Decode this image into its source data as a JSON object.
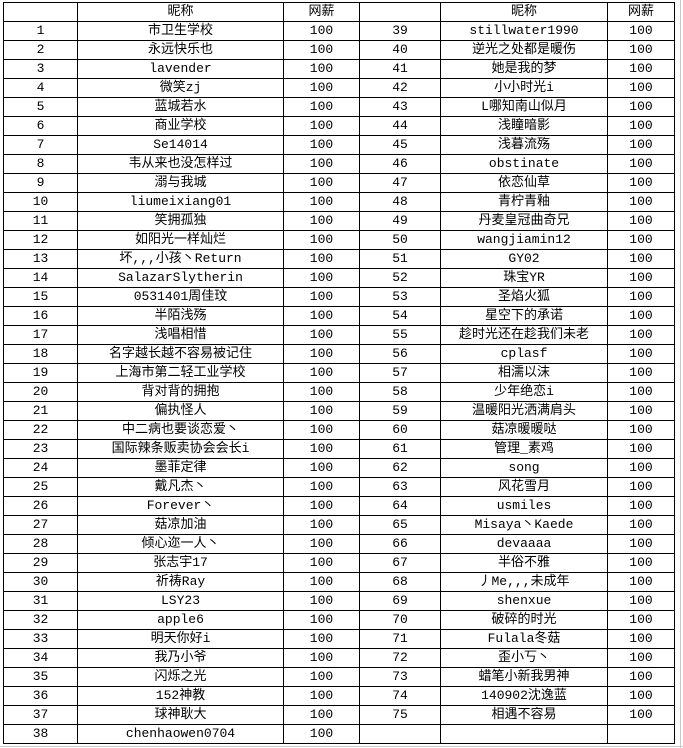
{
  "table": {
    "headers": {
      "index": "",
      "nickname": "昵称",
      "net_pay": "网薪"
    },
    "left_rows": [
      {
        "index": 1,
        "nickname": "市卫生学校",
        "net_pay": 100
      },
      {
        "index": 2,
        "nickname": "永远快乐也",
        "net_pay": 100
      },
      {
        "index": 3,
        "nickname": "lavender",
        "net_pay": 100
      },
      {
        "index": 4,
        "nickname": "微笑zj",
        "net_pay": 100
      },
      {
        "index": 5,
        "nickname": "蓝城若水",
        "net_pay": 100
      },
      {
        "index": 6,
        "nickname": "商业学校",
        "net_pay": 100
      },
      {
        "index": 7,
        "nickname": "Se14014",
        "net_pay": 100
      },
      {
        "index": 8,
        "nickname": "韦从来也没怎样过",
        "net_pay": 100
      },
      {
        "index": 9,
        "nickname": "溺与我城",
        "net_pay": 100
      },
      {
        "index": 10,
        "nickname": "liumeixiang01",
        "net_pay": 100
      },
      {
        "index": 11,
        "nickname": "笑拥孤独",
        "net_pay": 100
      },
      {
        "index": 12,
        "nickname": "如阳光一样灿烂",
        "net_pay": 100
      },
      {
        "index": 13,
        "nickname": "坏,,,小孩丶Return",
        "net_pay": 100
      },
      {
        "index": 14,
        "nickname": "SalazarSlytherin",
        "net_pay": 100
      },
      {
        "index": 15,
        "nickname": "0531401周佳玟",
        "net_pay": 100
      },
      {
        "index": 16,
        "nickname": "半陌浅殇",
        "net_pay": 100
      },
      {
        "index": 17,
        "nickname": "浅唱相惜",
        "net_pay": 100
      },
      {
        "index": 18,
        "nickname": "名字越长越不容易被记住",
        "net_pay": 100
      },
      {
        "index": 19,
        "nickname": "上海市第二轻工业学校",
        "net_pay": 100
      },
      {
        "index": 20,
        "nickname": "背对背的拥抱",
        "net_pay": 100
      },
      {
        "index": 21,
        "nickname": "偏执怪人",
        "net_pay": 100
      },
      {
        "index": 22,
        "nickname": "中二病也要谈恋爱丶",
        "net_pay": 100
      },
      {
        "index": 23,
        "nickname": "国际辣条贩卖协会会长i",
        "net_pay": 100
      },
      {
        "index": 24,
        "nickname": "墨菲定律",
        "net_pay": 100
      },
      {
        "index": 25,
        "nickname": "戴凡杰丶",
        "net_pay": 100
      },
      {
        "index": 26,
        "nickname": "Forever丶",
        "net_pay": 100
      },
      {
        "index": 27,
        "nickname": "菇凉加油",
        "net_pay": 100
      },
      {
        "index": 28,
        "nickname": "倾心迩一人丶",
        "net_pay": 100
      },
      {
        "index": 29,
        "nickname": "张志宇17",
        "net_pay": 100
      },
      {
        "index": 30,
        "nickname": "祈祷Ray",
        "net_pay": 100
      },
      {
        "index": 31,
        "nickname": "LSY23",
        "net_pay": 100
      },
      {
        "index": 32,
        "nickname": "apple6",
        "net_pay": 100
      },
      {
        "index": 33,
        "nickname": "明天你好i",
        "net_pay": 100
      },
      {
        "index": 34,
        "nickname": "我乃小爷",
        "net_pay": 100
      },
      {
        "index": 35,
        "nickname": "闪烁之光",
        "net_pay": 100
      },
      {
        "index": 36,
        "nickname": "152神教",
        "net_pay": 100
      },
      {
        "index": 37,
        "nickname": "球神耿大",
        "net_pay": 100
      },
      {
        "index": 38,
        "nickname": "chenhaowen0704",
        "net_pay": 100
      }
    ],
    "right_rows": [
      {
        "index": 39,
        "nickname": "stillwater1990",
        "net_pay": 100
      },
      {
        "index": 40,
        "nickname": "逆光之处都是暖伤",
        "net_pay": 100
      },
      {
        "index": 41,
        "nickname": "她是我的梦",
        "net_pay": 100
      },
      {
        "index": 42,
        "nickname": "小小时光i",
        "net_pay": 100
      },
      {
        "index": 43,
        "nickname": "L哪知南山似月",
        "net_pay": 100
      },
      {
        "index": 44,
        "nickname": "浅瞳暗影",
        "net_pay": 100
      },
      {
        "index": 45,
        "nickname": "浅暮流殇",
        "net_pay": 100
      },
      {
        "index": 46,
        "nickname": "obstinate",
        "net_pay": 100
      },
      {
        "index": 47,
        "nickname": "依恋仙草",
        "net_pay": 100
      },
      {
        "index": 48,
        "nickname": "青柠青釉",
        "net_pay": 100
      },
      {
        "index": 49,
        "nickname": "丹麦皇冠曲奇兄",
        "net_pay": 100
      },
      {
        "index": 50,
        "nickname": "wangjiamin12",
        "net_pay": 100
      },
      {
        "index": 51,
        "nickname": "GY02",
        "net_pay": 100
      },
      {
        "index": 52,
        "nickname": "珠宝YR",
        "net_pay": 100
      },
      {
        "index": 53,
        "nickname": "圣焰火狐",
        "net_pay": 100
      },
      {
        "index": 54,
        "nickname": "星空下的承诺",
        "net_pay": 100
      },
      {
        "index": 55,
        "nickname": "趁时光还在趁我们未老",
        "net_pay": 100
      },
      {
        "index": 56,
        "nickname": "cplasf",
        "net_pay": 100
      },
      {
        "index": 57,
        "nickname": "相濡以沫",
        "net_pay": 100
      },
      {
        "index": 58,
        "nickname": "少年绝恋i",
        "net_pay": 100
      },
      {
        "index": 59,
        "nickname": "温暖阳光洒满肩头",
        "net_pay": 100
      },
      {
        "index": 60,
        "nickname": "菇凉暖暖哒",
        "net_pay": 100
      },
      {
        "index": 61,
        "nickname": "管理_素鸡",
        "net_pay": 100
      },
      {
        "index": 62,
        "nickname": "song",
        "net_pay": 100
      },
      {
        "index": 63,
        "nickname": "风花雪月",
        "net_pay": 100
      },
      {
        "index": 64,
        "nickname": "usmiles",
        "net_pay": 100
      },
      {
        "index": 65,
        "nickname": "Misaya丶Kaede",
        "net_pay": 100
      },
      {
        "index": 66,
        "nickname": "devaaaa",
        "net_pay": 100
      },
      {
        "index": 67,
        "nickname": "半俗不雅",
        "net_pay": 100
      },
      {
        "index": 68,
        "nickname": "丿Me,,,未成年",
        "net_pay": 100
      },
      {
        "index": 69,
        "nickname": "shenxue",
        "net_pay": 100
      },
      {
        "index": 70,
        "nickname": "破碎的时光",
        "net_pay": 100
      },
      {
        "index": 71,
        "nickname": "Fulala冬菇",
        "net_pay": 100
      },
      {
        "index": 72,
        "nickname": "歪小丂丶",
        "net_pay": 100
      },
      {
        "index": 73,
        "nickname": "蜡笔小新我男神",
        "net_pay": 100
      },
      {
        "index": 74,
        "nickname": "140902沈逸蓝",
        "net_pay": 100
      },
      {
        "index": 75,
        "nickname": "相遇不容易",
        "net_pay": 100
      }
    ]
  },
  "colors": {
    "cell_border": "#000000",
    "sheet_gridline": "#c9c9c9",
    "background": "#ffffff",
    "text": "#000000"
  }
}
